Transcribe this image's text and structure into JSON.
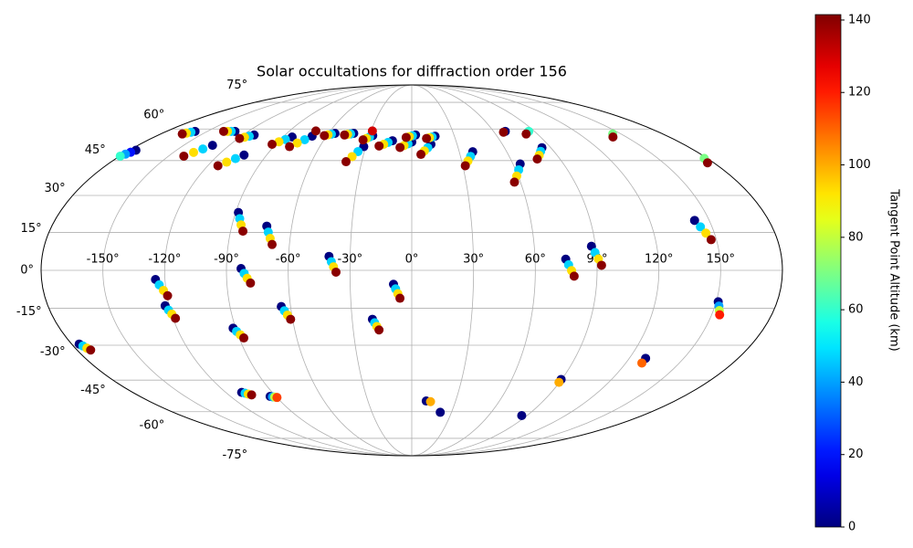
{
  "chart_data": {
    "type": "scatter",
    "title": "Solar occultations for diffraction order 156",
    "projection": "mollweide",
    "grid": true,
    "colormap": "jet",
    "colorbar_label": "Tangent Point Altitude (km)",
    "clim": [
      0,
      141.5
    ],
    "cticks": [
      0,
      20,
      40,
      60,
      80,
      100,
      120,
      140
    ],
    "xlim": [
      -180,
      180
    ],
    "ylim": [
      -90,
      90
    ],
    "xticks": [
      {
        "value": -150,
        "label": "-150°"
      },
      {
        "value": -120,
        "label": "-120°"
      },
      {
        "value": -90,
        "label": "-90°"
      },
      {
        "value": -60,
        "label": "-60°"
      },
      {
        "value": -30,
        "label": "-30°"
      },
      {
        "value": 0,
        "label": "0°"
      },
      {
        "value": 30,
        "label": "30°"
      },
      {
        "value": 60,
        "label": "60°"
      },
      {
        "value": 90,
        "label": "90°"
      },
      {
        "value": 120,
        "label": "120°"
      },
      {
        "value": 150,
        "label": "150°"
      }
    ],
    "yticks": [
      {
        "value": -75,
        "label": "-75°"
      },
      {
        "value": -60,
        "label": "-60°"
      },
      {
        "value": -45,
        "label": "-45°"
      },
      {
        "value": -30,
        "label": "-30°"
      },
      {
        "value": -15,
        "label": "-15°"
      },
      {
        "value": 0,
        "label": "0°"
      },
      {
        "value": 15,
        "label": "15°"
      },
      {
        "value": 30,
        "label": "30°"
      },
      {
        "value": 45,
        "label": "45°"
      },
      {
        "value": 60,
        "label": "60°"
      },
      {
        "value": 75,
        "label": "75°"
      }
    ],
    "tracks": [
      {
        "x": [
          -124.6,
          -123.0,
          -121.3,
          -119.7
        ],
        "y": [
          -3.6,
          -5.7,
          -7.9,
          -10
        ],
        "c": [
          0,
          47,
          93,
          140
        ]
      },
      {
        "x": [
          -122,
          -120.9,
          -119.9,
          -118.8
        ],
        "y": [
          -14,
          -15.7,
          -17.3,
          -19
        ],
        "c": [
          0,
          47,
          93,
          140
        ]
      },
      {
        "x": [
          -176,
          -174.9,
          -173.8,
          -172.7
        ],
        "y": [
          -29.5,
          -30.3,
          -31.2,
          -32
        ],
        "c": [
          0,
          47,
          93,
          140
        ]
      },
      {
        "x": [
          -91.3,
          -90.1,
          -88.8,
          -87.6
        ],
        "y": [
          -23,
          -24.3,
          -25.7,
          -27
        ],
        "c": [
          0,
          47,
          93,
          140
        ]
      },
      {
        "x": [
          -82.9,
          -81.4,
          -80,
          -78.5
        ],
        "y": [
          0.7,
          -1.2,
          -3.1,
          -5
        ],
        "c": [
          0,
          47,
          93,
          140
        ]
      },
      {
        "x": [
          -88.6,
          -87,
          -85.5,
          -83.9
        ],
        "y": [
          23,
          20.5,
          18,
          15.5
        ],
        "c": [
          0,
          47,
          93,
          140
        ]
      },
      {
        "x": [
          -72.5,
          -71.2,
          -69.8,
          -68.5
        ],
        "y": [
          17.5,
          15.1,
          12.6,
          10.2
        ],
        "c": [
          0,
          47,
          93,
          140
        ]
      },
      {
        "x": [
          -64.6,
          -63.4,
          -62.2,
          -61
        ],
        "y": [
          -14.3,
          -16,
          -17.7,
          -19.4
        ],
        "c": [
          0,
          47,
          93,
          140
        ]
      },
      {
        "x": [
          -40.3,
          -39.1,
          -38,
          -36.8
        ],
        "y": [
          5.5,
          3.4,
          1.4,
          -0.7
        ],
        "c": [
          0,
          47,
          93,
          140
        ]
      },
      {
        "x": [
          -19.8,
          -18.8,
          -17.8,
          -16.8
        ],
        "y": [
          -19.4,
          -20.8,
          -22.3,
          -23.7
        ],
        "c": [
          0,
          47,
          93,
          140
        ]
      },
      {
        "x": [
          -8.9,
          -7.9,
          -6.8,
          -5.8
        ],
        "y": [
          -5.5,
          -7.3,
          -9.2,
          -11
        ],
        "c": [
          0,
          47,
          93,
          140
        ]
      },
      {
        "x": [
          -109.7,
          -108.1,
          -106.6,
          -105
        ],
        "y": [
          -50.6,
          -51,
          -51.4,
          -51.8
        ],
        "c": [
          0,
          47,
          93,
          140
        ]
      },
      {
        "x": [
          -93.8,
          -92.5,
          -91.2,
          -89.9
        ],
        "y": [
          -52.5,
          -52.7,
          -52.8,
          -53
        ],
        "c": [
          0,
          40,
          80,
          115
        ]
      },
      {
        "x": [
          9.9,
          12.9
        ],
        "y": [
          -54.7,
          -55
        ],
        "c": [
          0,
          100
        ]
      },
      {
        "x": [
          21.5
        ],
        "y": [
          -60.3
        ],
        "c": [
          0
        ]
      },
      {
        "x": [
          85.9
        ],
        "y": [
          -62
        ],
        "c": [
          0
        ]
      },
      {
        "x": [
          89.7,
          89.7
        ],
        "y": [
          -44.7,
          -46
        ],
        "c": [
          0,
          100
        ]
      },
      {
        "x": [
          129,
          129
        ],
        "y": [
          -35.5,
          -37.5
        ],
        "c": [
          0,
          110
        ]
      },
      {
        "x": [
          88,
          89.4,
          90.8,
          92.2
        ],
        "y": [
          9.5,
          7,
          4.5,
          2
        ],
        "c": [
          0,
          47,
          93,
          140
        ]
      },
      {
        "x": [
          74.9,
          76.2,
          77.6,
          78.9
        ],
        "y": [
          4.4,
          2.2,
          -0.1,
          -2.3
        ],
        "c": [
          0,
          47,
          93,
          140
        ]
      },
      {
        "x": [
          151,
          152,
          153,
          154
        ],
        "y": [
          -12.4,
          -14.1,
          -15.9,
          -17.6
        ],
        "c": [
          0,
          40,
          80,
          120
        ]
      },
      {
        "x": [
          142.6,
          144.2,
          145.8,
          147.4
        ],
        "y": [
          19.8,
          17.2,
          14.7,
          12.1
        ],
        "c": [
          0,
          47,
          93,
          140
        ]
      },
      {
        "x": [
          64.3,
          61.8,
          59.2,
          56.7
        ],
        "y": [
          43.5,
          40.9,
          38.2,
          35.6
        ],
        "c": [
          0,
          47,
          93,
          140
        ]
      },
      {
        "x": [
          84.3,
          81.6,
          78.9,
          76.2
        ],
        "y": [
          50.9,
          49.2,
          47.4,
          45.7
        ],
        "c": [
          0,
          47,
          93,
          140
        ]
      },
      {
        "x": [
          38.5,
          36.2,
          33.8,
          31.5
        ],
        "y": [
          49,
          46.9,
          44.8,
          42.7
        ],
        "c": [
          0,
          47,
          93,
          140
        ]
      },
      {
        "x": [
          -175.8,
          -177.1,
          -178.4,
          -179.7
        ],
        "y": [
          49.7,
          48.8,
          47.9,
          47
        ],
        "c": [
          0,
          20,
          40,
          60
        ]
      },
      {
        "x": [
          -131,
          -134.2,
          -137.3,
          -140.5
        ],
        "y": [
          52,
          50.3,
          48.7,
          47
        ],
        "c": [
          0,
          47,
          93,
          140
        ]
      },
      {
        "x": [
          -104,
          -107.3,
          -110.7,
          -114
        ],
        "y": [
          47.5,
          45.9,
          44.3,
          42.7
        ],
        "c": [
          0,
          47,
          93,
          140
        ]
      },
      {
        "x": [
          -159,
          -160.8,
          -162.7,
          -164.5
        ],
        "y": [
          58.8,
          58.4,
          57.9,
          57.5
        ],
        "c": [
          0,
          47,
          93,
          140
        ]
      },
      {
        "x": [
          -129.7,
          -132.5,
          -135.2,
          -138
        ],
        "y": [
          58.8,
          58.8,
          58.8,
          58.8
        ],
        "c": [
          0,
          47,
          93,
          140
        ]
      },
      {
        "x": [
          -112,
          -114.3,
          -116.7,
          -119
        ],
        "y": [
          57,
          56.4,
          55.9,
          55.3
        ],
        "c": [
          0,
          47,
          93,
          140
        ]
      },
      {
        "x": [
          -83.6,
          -86.6,
          -89.5,
          -92.5
        ],
        "y": [
          56,
          54.8,
          53.7,
          52.5
        ],
        "c": [
          0,
          47,
          93,
          140
        ]
      },
      {
        "x": [
          -70.1,
          -73.3,
          -76.5,
          -79.7
        ],
        "y": [
          56.4,
          54.7,
          53.1,
          51.4
        ],
        "c": [
          0,
          47,
          93,
          140
        ]
      },
      {
        "x": [
          -70.6
        ],
        "y": [
          59
        ],
        "c": [
          140
        ]
      },
      {
        "x": [
          -55.3,
          -57.5,
          -59.6,
          -61.8
        ],
        "y": [
          57.8,
          57.4,
          57.1,
          56.7
        ],
        "c": [
          0,
          47,
          93,
          140
        ]
      },
      {
        "x": [
          -41.8,
          -43.8,
          -45.8,
          -47.8
        ],
        "y": [
          57.8,
          57.5,
          57.3,
          57
        ],
        "c": [
          0,
          47,
          93,
          140
        ]
      },
      {
        "x": [
          -31.3,
          -34,
          -36.7,
          -39.4
        ],
        "y": [
          51.4,
          49.1,
          46.8,
          44.5
        ],
        "c": [
          0,
          47,
          93,
          140
        ]
      },
      {
        "x": [
          -27.6,
          -29.5,
          -31.4,
          -33.3
        ],
        "y": [
          56.7,
          56,
          55.3,
          54.6
        ],
        "c": [
          0,
          47,
          93,
          140
        ]
      },
      {
        "x": [
          -29
        ],
        "y": [
          59
        ],
        "c": [
          130
        ]
      },
      {
        "x": [
          -13.1,
          -15.9,
          -18.6,
          -21.4
        ],
        "y": [
          54.2,
          53.4,
          52.5,
          51.7
        ],
        "c": [
          0,
          47,
          93,
          140
        ]
      },
      {
        "x": [
          0,
          -2.5,
          -5.1,
          -7.6
        ],
        "y": [
          53.6,
          52.7,
          51.9,
          51
        ],
        "c": [
          0,
          47,
          93,
          140
        ]
      },
      {
        "x": [
          2.7,
          0.5,
          -1.7,
          -3.9
        ],
        "y": [
          57,
          56.6,
          56.2,
          55.8
        ],
        "c": [
          0,
          47,
          93,
          140
        ]
      },
      {
        "x": [
          12.7,
          10.4,
          8,
          5.7
        ],
        "y": [
          52.5,
          50.9,
          49.4,
          47.8
        ],
        "c": [
          0,
          47,
          93,
          140
        ]
      },
      {
        "x": [
          16.4,
          14.3,
          12.3,
          10.2
        ],
        "y": [
          56.4,
          56,
          55.7,
          55.3
        ],
        "c": [
          0,
          47,
          93,
          140
        ]
      },
      {
        "x": [
          68.6,
          66.8
        ],
        "y": [
          58.8,
          58.4
        ],
        "c": [
          0,
          140
        ]
      },
      {
        "x": [
          85.8,
          82
        ],
        "y": [
          58.8,
          57.5
        ],
        "c": [
          60,
          140
        ]
      },
      {
        "x": [
          144,
          140.6
        ],
        "y": [
          57.5,
          56
        ],
        "c": [
          70,
          140
        ]
      },
      {
        "x": [
          178.2,
          176.3
        ],
        "y": [
          46,
          44
        ],
        "c": [
          70,
          140
        ]
      }
    ]
  }
}
